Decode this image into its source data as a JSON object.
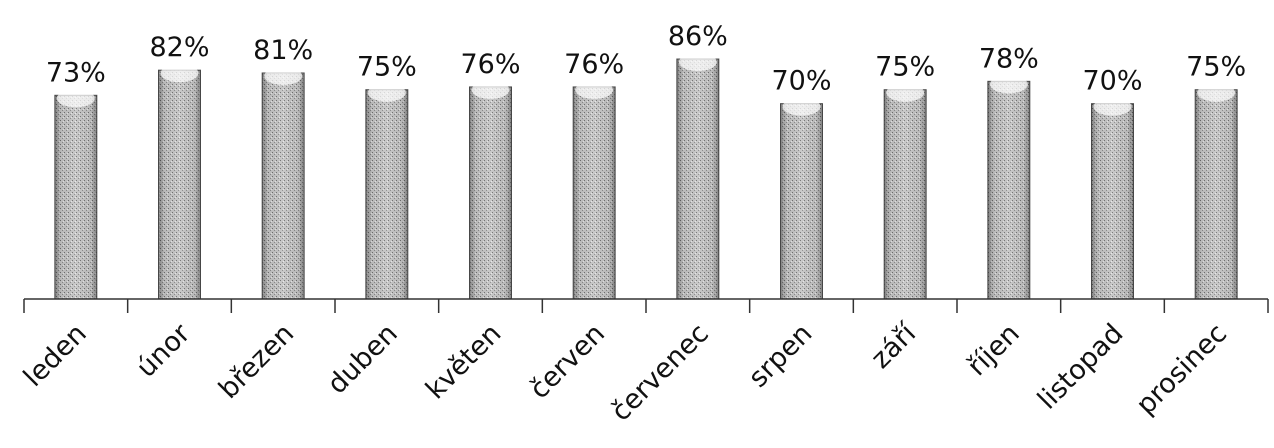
{
  "chart_data": {
    "type": "bar",
    "title": "",
    "xlabel": "",
    "ylabel": "",
    "categories": [
      "leden",
      "únor",
      "březen",
      "duben",
      "květen",
      "červen",
      "červenec",
      "srpen",
      "září",
      "říjen",
      "listopad",
      "prosinec"
    ],
    "values": [
      73,
      82,
      81,
      75,
      76,
      76,
      86,
      70,
      75,
      78,
      70,
      75
    ],
    "value_labels": [
      "73%",
      "82%",
      "81%",
      "75%",
      "76%",
      "76%",
      "86%",
      "70%",
      "75%",
      "78%",
      "70%",
      "75%"
    ],
    "value_suffix": "%",
    "ylim": [
      0,
      100
    ],
    "grid": false,
    "legend": "none",
    "bar_color": "#b8b8b8",
    "axis_color": "#333333"
  }
}
